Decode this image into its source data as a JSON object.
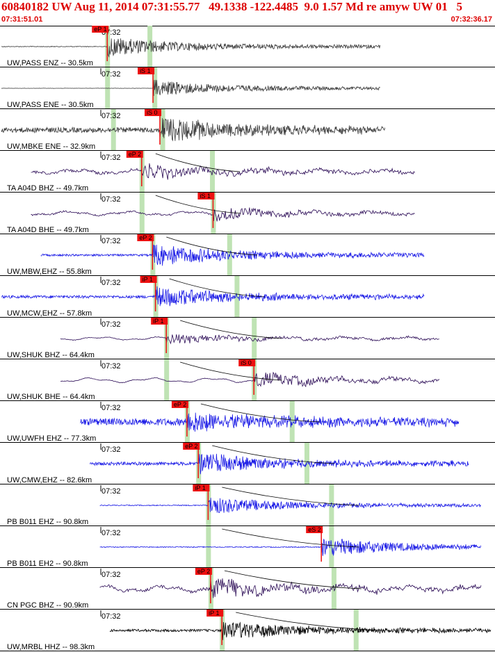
{
  "header": {
    "title": "60840182 UW Aug 11, 2014 07:31:55.77   49.1338 -122.4485  9.0 1.57 Md re amyw UW 01   5",
    "start_time": "07:31:51.01",
    "end_time": "07:32:36.17"
  },
  "colors": {
    "header": "#dd0000",
    "pick": "#ee1111",
    "band": "#bfe3b4",
    "dark": "#3a3a3a",
    "navy": "#2a0a55",
    "blue": "#1a1ae6",
    "black": "#000000"
  },
  "time_tick": "07:32",
  "traces": [
    {
      "label": "UW,PASS ENZ -- 30.5km",
      "pick": "eP 1",
      "color": "dark",
      "amp": 0.42,
      "noise": 0.04,
      "onset": 0.215,
      "band": 0.215,
      "band2": 0.301,
      "end": 0.77,
      "start": 0.0,
      "smooth": false
    },
    {
      "label": "UW,PASS ENE -- 30.5km",
      "pick": "iS 1",
      "color": "dark",
      "amp": 0.35,
      "noise": 0.02,
      "onset": 0.308,
      "band": 0.215,
      "band2": 0.311,
      "end": 0.77,
      "start": 0.0,
      "smooth": false
    },
    {
      "label": "UW,MBKE ENE -- 32.9km",
      "pick": "iS 0",
      "color": "dark",
      "amp": 0.55,
      "noise": 0.22,
      "onset": 0.322,
      "band": 0.227,
      "band2": 0.327,
      "end": 0.78,
      "start": 0.0,
      "smooth": false
    },
    {
      "label": "TA A04D BHZ -- 49.7km",
      "pick": "eP 2",
      "color": "navy",
      "amp": 0.3,
      "noise": 0.1,
      "onset": 0.285,
      "band": 0.285,
      "band2": 0.428,
      "end": 0.84,
      "start": 0.06,
      "smooth": true
    },
    {
      "label": "TA A04D BHE -- 49.7km",
      "pick": "iS 1",
      "color": "navy",
      "amp": 0.28,
      "noise": 0.06,
      "onset": 0.43,
      "band": 0.285,
      "band2": 0.43,
      "end": 0.84,
      "start": 0.06,
      "smooth": true
    },
    {
      "label": "UW,MBW,EHZ -- 55.8km",
      "pick": "eP 2",
      "color": "blue",
      "amp": 0.48,
      "noise": 0.1,
      "onset": 0.307,
      "band": 0.307,
      "band2": 0.463,
      "end": 0.86,
      "start": 0.08,
      "smooth": false
    },
    {
      "label": "UW,MCW,EHZ -- 57.8km",
      "pick": "iP 1",
      "color": "blue",
      "amp": 0.42,
      "noise": 0.16,
      "onset": 0.313,
      "band": 0.313,
      "band2": 0.478,
      "end": 0.86,
      "start": 0.0,
      "smooth": false
    },
    {
      "label": "UW,SHUK BHZ -- 64.4km",
      "pick": "iP 1",
      "color": "navy",
      "amp": 0.22,
      "noise": 0.03,
      "onset": 0.335,
      "band": 0.335,
      "band2": 0.513,
      "end": 0.89,
      "start": 0.12,
      "smooth": true
    },
    {
      "label": "UW,SHUK BHE -- 64.4km",
      "pick": "iS 0",
      "color": "navy",
      "amp": 0.32,
      "noise": 0.02,
      "onset": 0.513,
      "band": 0.335,
      "band2": 0.513,
      "end": 0.89,
      "start": 0.12,
      "smooth": true
    },
    {
      "label": "UW,UWFH EHZ -- 77.3km",
      "pick": "eP 2",
      "color": "blue",
      "amp": 0.48,
      "noise": 0.35,
      "onset": 0.377,
      "band": 0.377,
      "band2": 0.59,
      "end": 0.93,
      "start": 0.16,
      "smooth": false
    },
    {
      "label": "UW,CMW,EHZ -- 82.6km",
      "pick": "eP 2",
      "color": "blue",
      "amp": 0.45,
      "noise": 0.18,
      "onset": 0.4,
      "band": 0.4,
      "band2": 0.62,
      "end": 0.95,
      "start": 0.18,
      "smooth": false
    },
    {
      "label": "PB B011 EHZ -- 90.8km",
      "pick": "iP 1",
      "color": "blue",
      "amp": 0.38,
      "noise": 0.06,
      "onset": 0.42,
      "band": 0.42,
      "band2": 0.67,
      "end": 0.975,
      "start": 0.2,
      "smooth": false
    },
    {
      "label": "PB B011 EH2 -- 90.8km",
      "pick": "eS 2",
      "color": "blue",
      "amp": 0.42,
      "noise": 0.05,
      "onset": 0.65,
      "band": 0.42,
      "band2": 0.67,
      "end": 0.975,
      "start": 0.2,
      "smooth": false
    },
    {
      "label": "CN PGC BHZ -- 90.9km",
      "pick": "eP 2",
      "color": "navy",
      "amp": 0.4,
      "noise": 0.08,
      "onset": 0.425,
      "band": 0.425,
      "band2": 0.675,
      "end": 0.975,
      "start": 0.2,
      "smooth": true
    },
    {
      "label": "UW,MRBL HHZ -- 98.3km",
      "pick": "iP 1",
      "color": "black",
      "amp": 0.42,
      "noise": 0.14,
      "onset": 0.448,
      "band": 0.448,
      "band2": 0.72,
      "end": 0.995,
      "start": 0.22,
      "smooth": false
    }
  ]
}
